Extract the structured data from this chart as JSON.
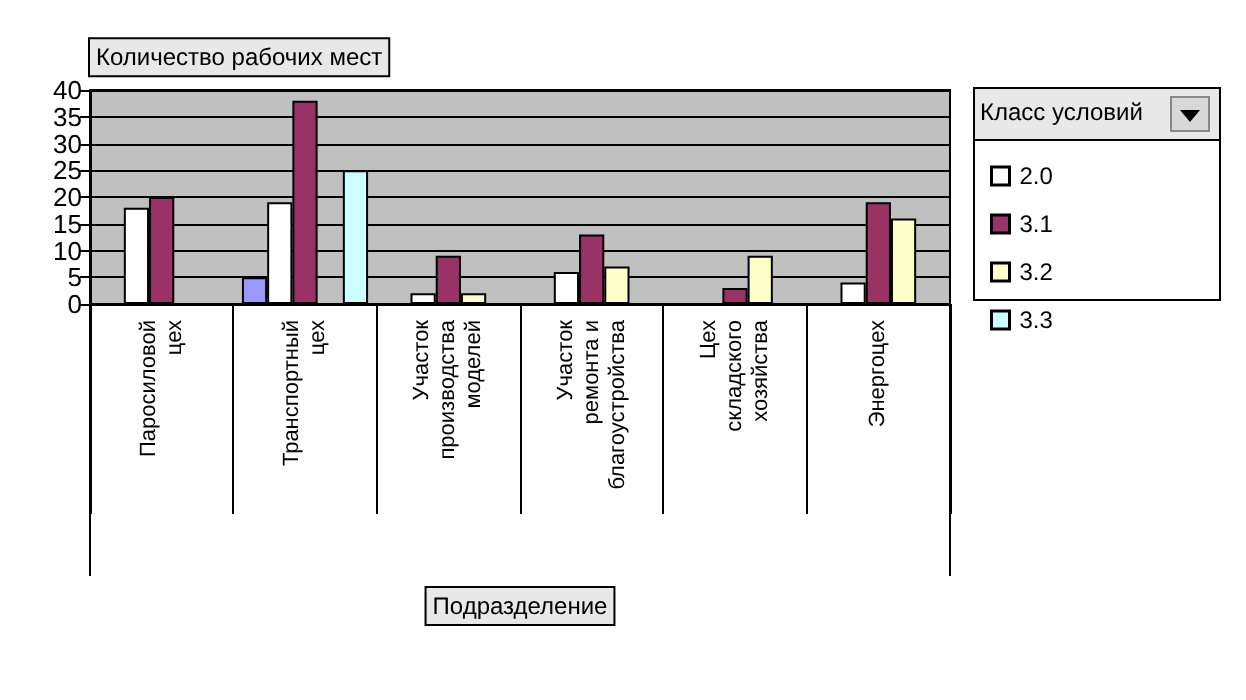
{
  "chart_data": {
    "type": "bar",
    "ylabel": "Количество рабочих мест",
    "xlabel": "Подразделение",
    "legend_title": "Класс условий",
    "categories": [
      "Паросиловой цех",
      "Транспортный цех",
      "Участок производства моделей",
      "Участок ремонта и благоустройства",
      "Цех складского хозяйства",
      "Энергоцех"
    ],
    "series": [
      {
        "color": "#9999ff",
        "values": [
          null,
          5,
          null,
          null,
          null,
          null
        ]
      },
      {
        "name": "2.0",
        "color": "#ffffff",
        "values": [
          18,
          19,
          2,
          6,
          null,
          4
        ]
      },
      {
        "name": "3.1",
        "color": "#993366",
        "values": [
          20,
          38,
          9,
          13,
          3,
          19
        ]
      },
      {
        "name": "3.2",
        "color": "#ffffcc",
        "values": [
          null,
          null,
          2,
          7,
          9,
          16
        ]
      },
      {
        "name": "3.3",
        "color": "#ccffff",
        "values": [
          null,
          25,
          null,
          null,
          null,
          null
        ]
      }
    ],
    "ylim": [
      0,
      40
    ],
    "yticks": [
      0,
      5,
      10,
      15,
      20,
      25,
      30,
      35,
      40
    ],
    "grid": "y",
    "legend": "right"
  }
}
